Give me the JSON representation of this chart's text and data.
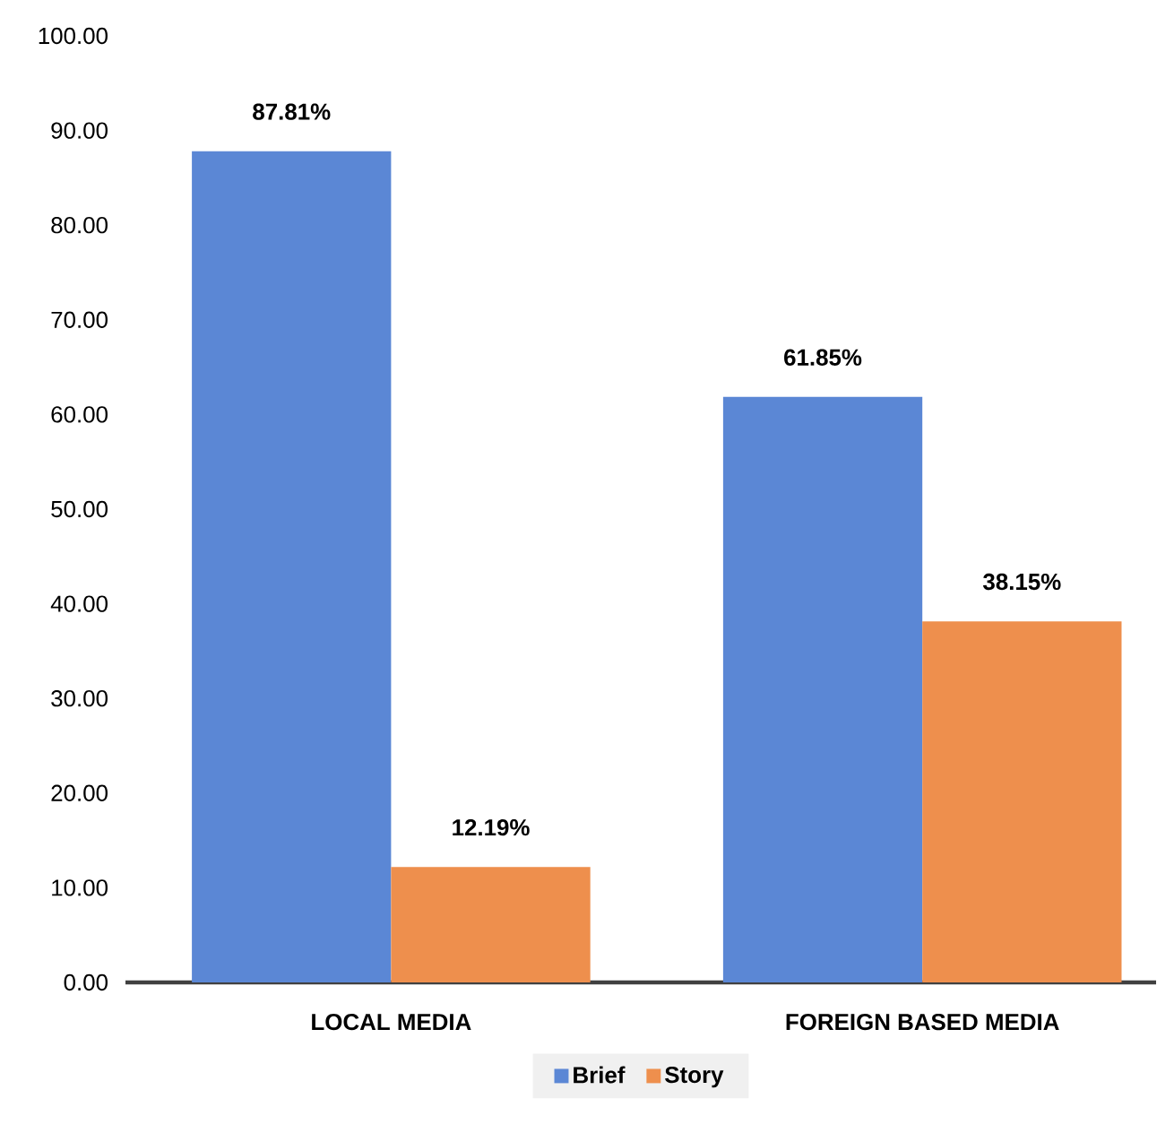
{
  "chart_data": {
    "type": "bar",
    "categories": [
      "LOCAL MEDIA",
      "FOREIGN BASED MEDIA"
    ],
    "series": [
      {
        "name": "Brief",
        "color": "#5b87d5",
        "values": [
          87.81,
          61.85
        ],
        "value_labels": [
          "87.81%",
          "61.85%"
        ]
      },
      {
        "name": "Story",
        "color": "#ee8f4d",
        "values": [
          12.19,
          38.15
        ],
        "value_labels": [
          "12.19%",
          "38.15%"
        ]
      }
    ],
    "ylim": [
      0,
      100
    ],
    "yticks": [
      {
        "value": 0,
        "label": "0.00"
      },
      {
        "value": 10,
        "label": "10.00"
      },
      {
        "value": 20,
        "label": "20.00"
      },
      {
        "value": 30,
        "label": "30.00"
      },
      {
        "value": 40,
        "label": "40.00"
      },
      {
        "value": 50,
        "label": "50.00"
      },
      {
        "value": 60,
        "label": "60.00"
      },
      {
        "value": 70,
        "label": "70.00"
      },
      {
        "value": 80,
        "label": "80.00"
      },
      {
        "value": 90,
        "label": "90.00"
      },
      {
        "value": 100,
        "label": "100.00"
      }
    ],
    "grid": false,
    "legend": "bottom"
  }
}
